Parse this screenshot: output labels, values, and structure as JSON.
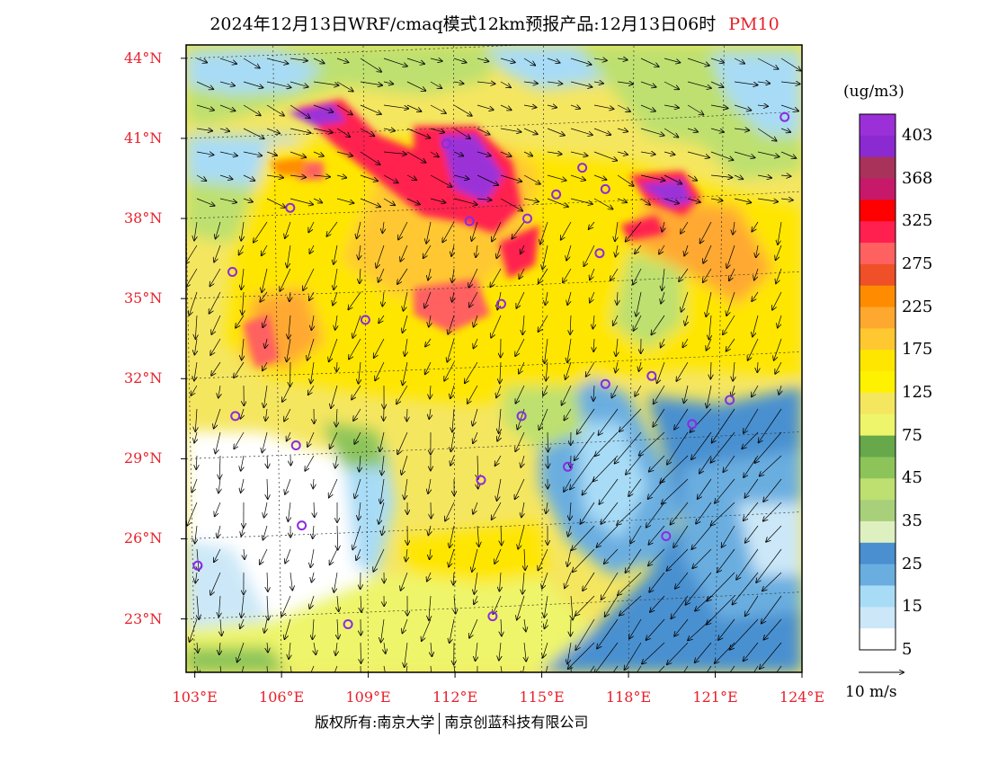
{
  "title": {
    "main": "2024年12月13日WRF/cmaq模式12km预报产品:12月13日06时",
    "pollutant": "PM10"
  },
  "axes": {
    "lat_labels": [
      "44°N",
      "41°N",
      "38°N",
      "35°N",
      "32°N",
      "29°N",
      "26°N",
      "23°N"
    ],
    "lon_labels": [
      "103°E",
      "106°E",
      "109°E",
      "112°E",
      "115°E",
      "118°E",
      "121°E",
      "124°E"
    ],
    "lat_range": [
      21,
      44.5
    ],
    "lon_range": [
      102.7,
      124
    ]
  },
  "legend": {
    "unit": "(ug/m3)",
    "labels": [
      "403",
      "368",
      "325",
      "275",
      "225",
      "175",
      "125",
      "75",
      "45",
      "35",
      "25",
      "15",
      "5"
    ],
    "colors": [
      "#9b30d8",
      "#8a2ad0",
      "#a8325a",
      "#c8186a",
      "#ff0000",
      "#ff2050",
      "#ff6060",
      "#f05028",
      "#ff8c00",
      "#ffa830",
      "#ffc830",
      "#ffe600",
      "#fff200",
      "#f5e660",
      "#eef56a",
      "#66a84a",
      "#8cc45a",
      "#bde070",
      "#a8d07a",
      "#dff0c0",
      "#4a90d0",
      "#6aaee0",
      "#a8dcf6",
      "#cce8f8",
      "#ffffff"
    ]
  },
  "wind_reference": "10 m/s",
  "copyright": {
    "left": "版权所有:南京大学",
    "right": "南京创蓝科技有限公司"
  },
  "stations": [
    {
      "lon": 103.1,
      "lat": 25.0
    },
    {
      "lon": 104.3,
      "lat": 36.0
    },
    {
      "lon": 106.3,
      "lat": 38.4
    },
    {
      "lon": 108.9,
      "lat": 34.2
    },
    {
      "lon": 104.4,
      "lat": 30.6
    },
    {
      "lon": 106.5,
      "lat": 29.5
    },
    {
      "lon": 106.7,
      "lat": 26.5
    },
    {
      "lon": 108.3,
      "lat": 22.8
    },
    {
      "lon": 111.7,
      "lat": 40.8
    },
    {
      "lon": 112.5,
      "lat": 37.9
    },
    {
      "lon": 113.6,
      "lat": 34.8
    },
    {
      "lon": 114.5,
      "lat": 38.0
    },
    {
      "lon": 114.3,
      "lat": 30.6
    },
    {
      "lon": 112.9,
      "lat": 28.2
    },
    {
      "lon": 115.9,
      "lat": 28.7
    },
    {
      "lon": 113.3,
      "lat": 23.1
    },
    {
      "lon": 117.2,
      "lat": 31.8
    },
    {
      "lon": 118.8,
      "lat": 32.1
    },
    {
      "lon": 120.2,
      "lat": 30.3
    },
    {
      "lon": 119.3,
      "lat": 26.1
    },
    {
      "lon": 117.0,
      "lat": 36.7
    },
    {
      "lon": 117.2,
      "lat": 39.1
    },
    {
      "lon": 116.4,
      "lat": 39.9
    },
    {
      "lon": 115.5,
      "lat": 38.9
    },
    {
      "lon": 121.5,
      "lat": 31.2
    },
    {
      "lon": 123.4,
      "lat": 41.8
    }
  ]
}
